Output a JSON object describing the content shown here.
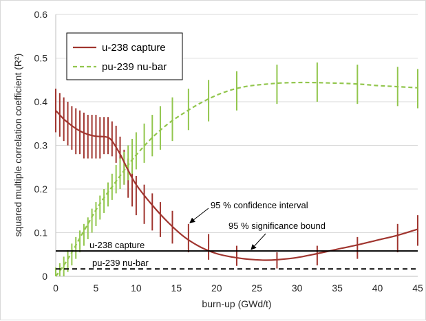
{
  "chart_data": {
    "type": "line",
    "title": "",
    "xlabel": "burn-up (GWd/t)",
    "ylabel": "squared multiple correlation coefficient (R²)",
    "xlim": [
      0,
      45
    ],
    "ylim": [
      0,
      0.6
    ],
    "x_ticks": [
      0,
      5,
      10,
      15,
      20,
      25,
      30,
      35,
      40,
      45
    ],
    "y_ticks": [
      "0",
      "0.1",
      "0.2",
      "0.3",
      "0.4",
      "0.5",
      "0.6"
    ],
    "grid": "horizontal",
    "legend": "top-left",
    "series": [
      {
        "name": "u-238 capture",
        "style": "solid",
        "color": "#a0352f",
        "x": [
          0,
          0.5,
          1,
          2,
          3,
          4,
          5,
          6,
          6.5,
          7,
          8,
          9,
          10,
          12,
          14,
          16,
          18,
          20,
          22,
          24,
          26,
          27.5,
          30,
          32.5,
          35,
          37.5,
          40,
          42.5,
          45
        ],
        "values": [
          0.38,
          0.37,
          0.36,
          0.345,
          0.333,
          0.325,
          0.321,
          0.32,
          0.318,
          0.31,
          0.28,
          0.243,
          0.21,
          0.163,
          0.123,
          0.09,
          0.067,
          0.052,
          0.044,
          0.039,
          0.037,
          0.038,
          0.043,
          0.052,
          0.062,
          0.072,
          0.083,
          0.094,
          0.108
        ]
      },
      {
        "name": "pu-239 nu-bar",
        "style": "dashed",
        "color": "#92c64d",
        "x": [
          0,
          1,
          2,
          3,
          4,
          5,
          6,
          7,
          8,
          9,
          10,
          12,
          14,
          16,
          18,
          20,
          22,
          24,
          26,
          28,
          30,
          32,
          34,
          36,
          38,
          40,
          42,
          45
        ],
        "values": [
          0.0,
          0.025,
          0.055,
          0.088,
          0.12,
          0.152,
          0.18,
          0.205,
          0.23,
          0.255,
          0.278,
          0.318,
          0.35,
          0.375,
          0.397,
          0.415,
          0.428,
          0.436,
          0.44,
          0.443,
          0.444,
          0.444,
          0.443,
          0.442,
          0.44,
          0.437,
          0.435,
          0.432
        ]
      }
    ],
    "error_bars": [
      {
        "series": "u-238 capture",
        "color": "#a0352f",
        "x": [
          0,
          0.5,
          1,
          1.5,
          2,
          2.5,
          3,
          3.5,
          4,
          4.5,
          5,
          5.5,
          6,
          6.5,
          7,
          7.5,
          8,
          8.5,
          9,
          9.5,
          10,
          11,
          12,
          13,
          14.5,
          16.5,
          19,
          22.5,
          27.5,
          32.5,
          37.5,
          42.5,
          45
        ],
        "low": [
          0.33,
          0.32,
          0.31,
          0.3,
          0.29,
          0.28,
          0.28,
          0.27,
          0.27,
          0.27,
          0.27,
          0.27,
          0.28,
          0.28,
          0.275,
          0.26,
          0.24,
          0.21,
          0.18,
          0.16,
          0.14,
          0.12,
          0.105,
          0.09,
          0.075,
          0.055,
          0.038,
          0.024,
          0.018,
          0.025,
          0.04,
          0.055,
          0.07
        ],
        "high": [
          0.43,
          0.42,
          0.41,
          0.4,
          0.39,
          0.385,
          0.38,
          0.375,
          0.37,
          0.37,
          0.37,
          0.365,
          0.365,
          0.365,
          0.355,
          0.345,
          0.32,
          0.29,
          0.27,
          0.25,
          0.23,
          0.21,
          0.19,
          0.17,
          0.15,
          0.12,
          0.097,
          0.07,
          0.055,
          0.07,
          0.09,
          0.12,
          0.14
        ]
      },
      {
        "series": "pu-239 nu-bar",
        "color": "#92c64d",
        "x": [
          0,
          0.5,
          1,
          1.5,
          2,
          2.5,
          3,
          3.5,
          4,
          4.5,
          5,
          5.5,
          6,
          6.5,
          7,
          7.5,
          8,
          8.5,
          9,
          9.5,
          10,
          11,
          12,
          13,
          14.5,
          16.5,
          19,
          22.5,
          27.5,
          32.5,
          37.5,
          42.5,
          45
        ],
        "low": [
          0.0,
          0.0,
          0.0,
          0.01,
          0.025,
          0.04,
          0.055,
          0.07,
          0.085,
          0.1,
          0.115,
          0.13,
          0.145,
          0.16,
          0.175,
          0.19,
          0.2,
          0.21,
          0.22,
          0.235,
          0.245,
          0.26,
          0.275,
          0.29,
          0.31,
          0.335,
          0.355,
          0.38,
          0.395,
          0.4,
          0.395,
          0.39,
          0.385
        ],
        "high": [
          0.02,
          0.03,
          0.045,
          0.06,
          0.075,
          0.09,
          0.105,
          0.12,
          0.135,
          0.155,
          0.17,
          0.185,
          0.2,
          0.215,
          0.235,
          0.255,
          0.27,
          0.285,
          0.3,
          0.315,
          0.33,
          0.35,
          0.37,
          0.39,
          0.41,
          0.43,
          0.45,
          0.47,
          0.485,
          0.49,
          0.485,
          0.48,
          0.475
        ]
      }
    ],
    "reference_lines": [
      {
        "name": "u-238 capture",
        "value": 0.058,
        "style": "solid",
        "color": "#000000"
      },
      {
        "name": "pu-239 nu-bar",
        "value": 0.017,
        "style": "dashed",
        "color": "#000000"
      }
    ],
    "annotations": [
      {
        "text": "95 % confidence interval",
        "points_to": "error-bar"
      },
      {
        "text": "95 % significance bound",
        "points_to": "reference-line"
      }
    ]
  }
}
